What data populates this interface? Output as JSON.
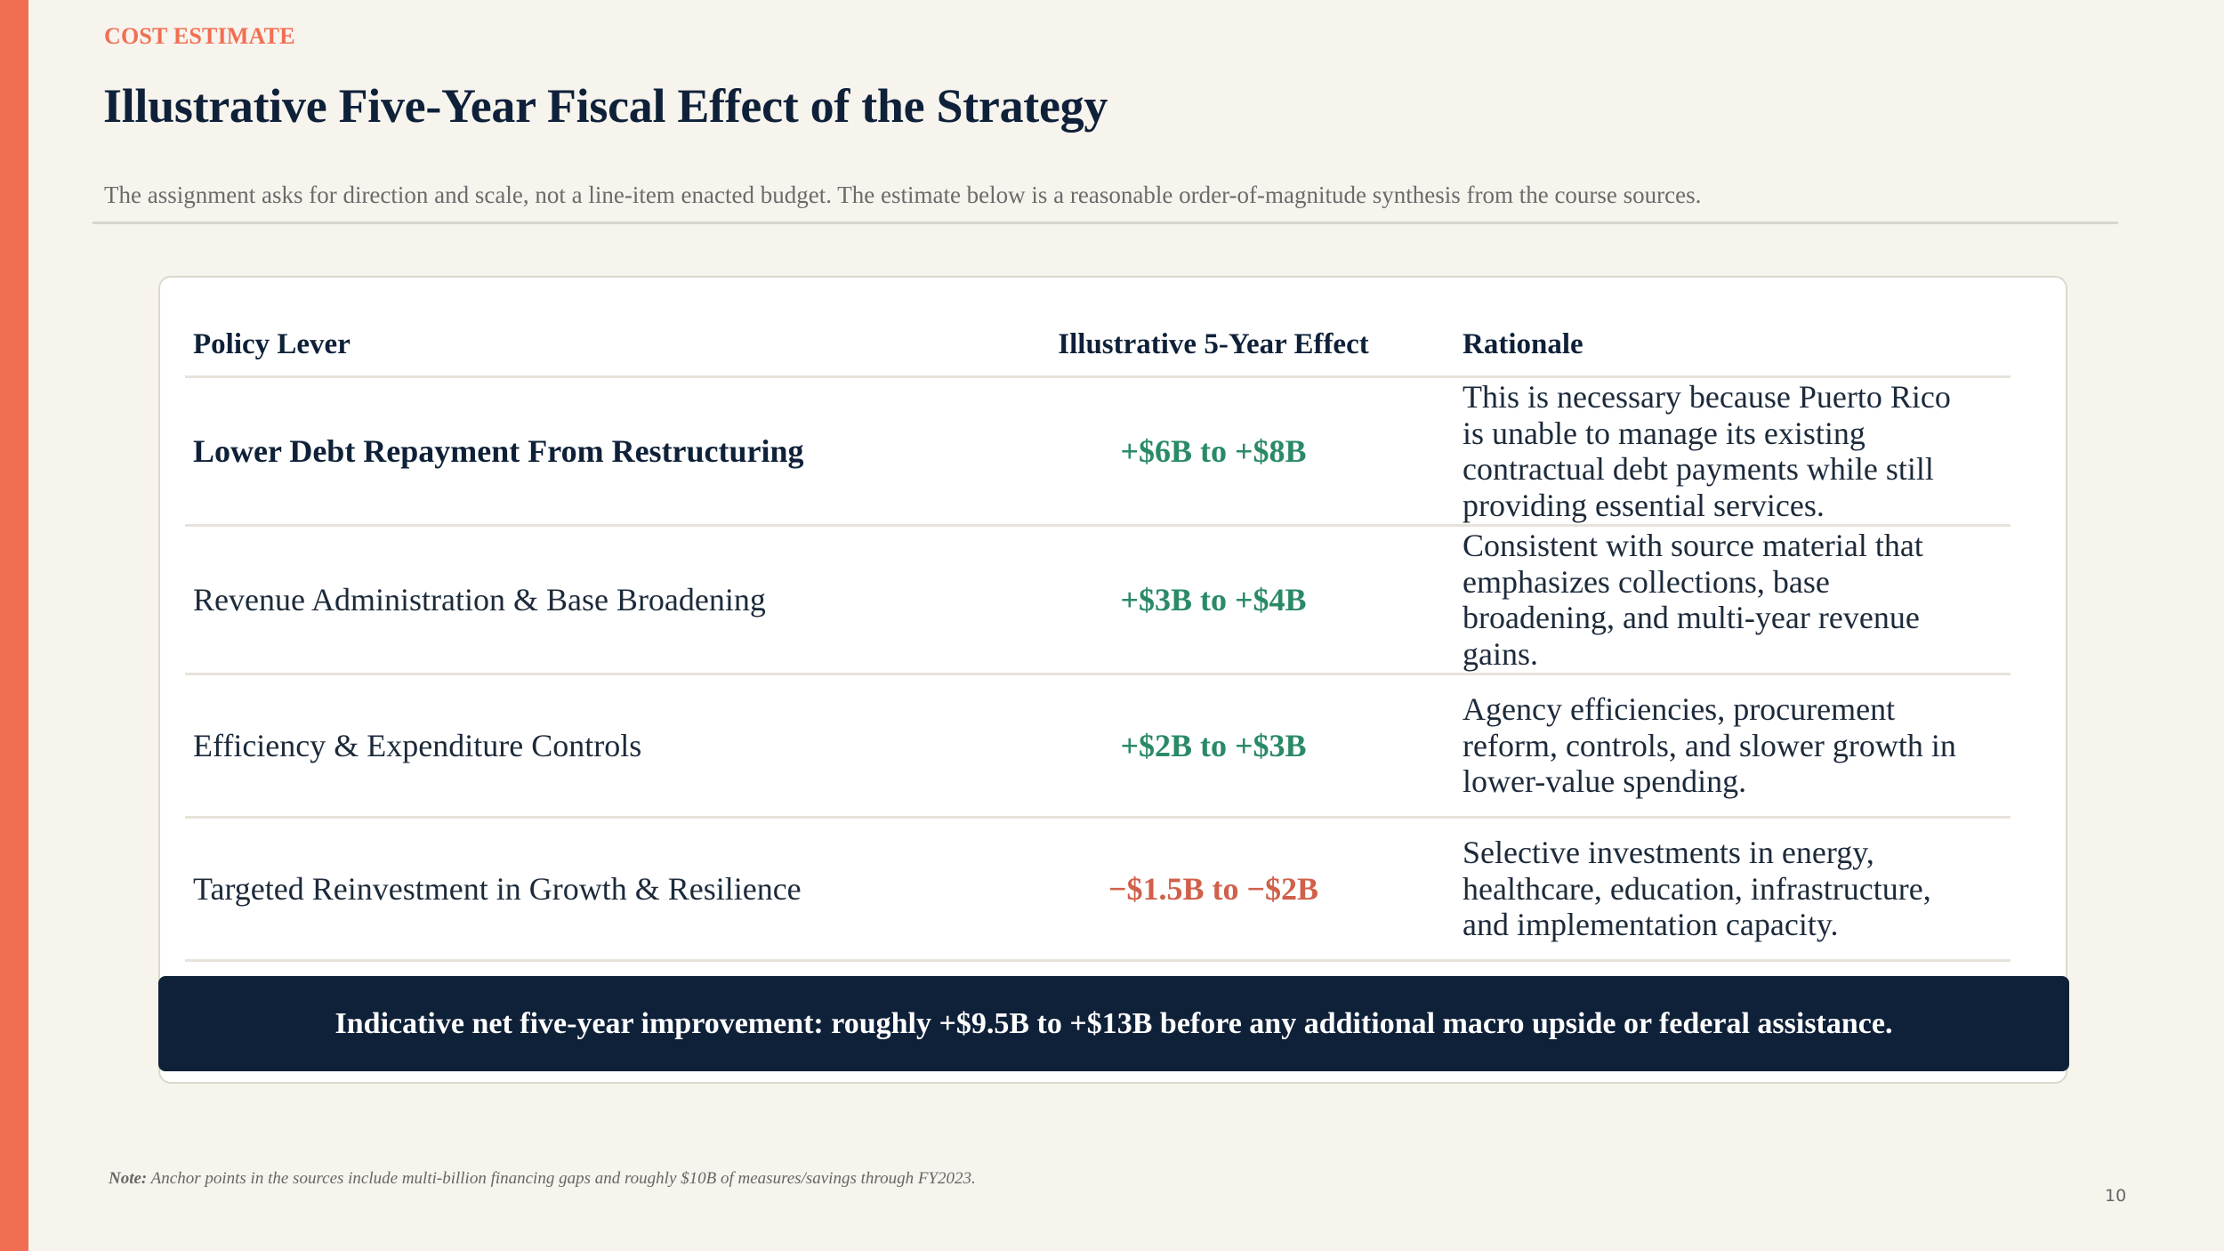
{
  "slide": {
    "eyebrow": "COST ESTIMATE",
    "title": "Illustrative Five-Year Fiscal Effect of the Strategy",
    "subtitle": "The assignment asks for direction and scale, not a line-item enacted budget. The estimate below is a reasonable order-of-magnitude synthesis from the course sources.",
    "page_number": "10"
  },
  "table": {
    "headers": {
      "lever": "Policy Lever",
      "effect": "Illustrative 5-Year Effect",
      "rationale": "Rationale"
    },
    "rows": [
      {
        "lever": "Lower Debt Repayment From Restructuring",
        "effect": "+$6B to +$8B",
        "rationale": "This is necessary because Puerto Rico is unable to manage its existing contractual debt payments while still providing essential services."
      },
      {
        "lever": "Revenue Administration & Base Broadening",
        "effect": "+$3B to +$4B",
        "rationale": "Consistent with source material that emphasizes collections, base broadening, and multi-year revenue gains."
      },
      {
        "lever": "Efficiency & Expenditure Controls",
        "effect": "+$2B to +$3B",
        "rationale": "Agency efficiencies, procurement reform, controls, and slower growth in lower-value spending."
      },
      {
        "lever": "Targeted Reinvestment in Growth & Resilience",
        "effect": "−$1.5B to −$2B",
        "rationale": "Selective investments in energy, healthcare, education, infrastructure, and implementation capacity."
      }
    ]
  },
  "summary": {
    "text": "Indicative net five-year improvement: roughly +$9.5B to +$13B before any additional macro upside or federal assistance."
  },
  "note": {
    "label": "Note:",
    "text": " Anchor points in the sources include multi-billion financing gaps and roughly $10B of measures/savings through FY2023."
  },
  "colors": {
    "accent": "#f26e52",
    "navy": "#0f2139",
    "positive": "#2a8a66",
    "negative": "#d0604a",
    "background": "#f7f4ee"
  }
}
